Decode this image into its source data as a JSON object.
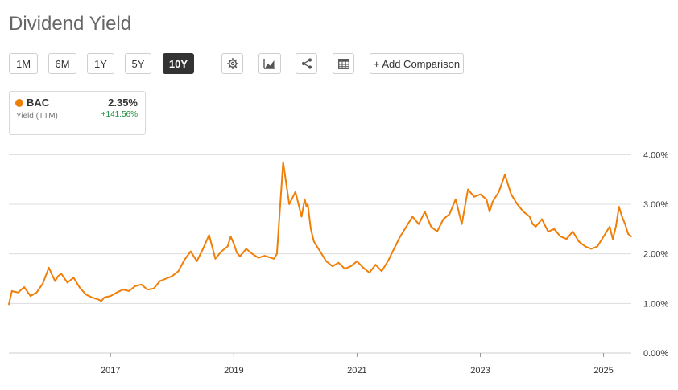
{
  "page": {
    "title": "Dividend Yield"
  },
  "toolbar": {
    "ranges": [
      "1M",
      "6M",
      "1Y",
      "5Y",
      "10Y"
    ],
    "active_range": "10Y",
    "add_comparison_label": "+ Add Comparison",
    "icons": [
      "gear-icon",
      "chart-type-icon",
      "share-icon",
      "table-icon"
    ]
  },
  "legend": {
    "ticker": "BAC",
    "value": "2.35%",
    "label": "Yield (TTM)",
    "change": "+141.56%",
    "color": "#f07f09",
    "change_color": "#1f8c3f"
  },
  "chart_data": {
    "type": "line",
    "title": "",
    "xlabel": "",
    "ylabel": "",
    "x_tick_labels": [
      "2017",
      "2019",
      "2021",
      "2023",
      "2025"
    ],
    "y_tick_labels": [
      "4.00%",
      "3.00%",
      "2.00%",
      "1.00%",
      "0.00%"
    ],
    "ylim": [
      0,
      4.2
    ],
    "xlim": [
      2015.35,
      2025.45
    ],
    "grid": true,
    "y_axis_side": "right",
    "series": [
      {
        "name": "BAC",
        "color": "#f07f09",
        "x": [
          2015.35,
          2015.4,
          2015.5,
          2015.6,
          2015.7,
          2015.8,
          2015.9,
          2016.0,
          2016.05,
          2016.1,
          2016.15,
          2016.2,
          2016.3,
          2016.4,
          2016.5,
          2016.6,
          2016.7,
          2016.8,
          2016.85,
          2016.9,
          2017.0,
          2017.1,
          2017.2,
          2017.3,
          2017.4,
          2017.5,
          2017.6,
          2017.7,
          2017.8,
          2017.9,
          2018.0,
          2018.1,
          2018.2,
          2018.3,
          2018.4,
          2018.5,
          2018.6,
          2018.7,
          2018.8,
          2018.9,
          2018.95,
          2019.0,
          2019.05,
          2019.1,
          2019.2,
          2019.3,
          2019.4,
          2019.5,
          2019.6,
          2019.65,
          2019.7,
          2019.8,
          2019.9,
          2020.0,
          2020.1,
          2020.15,
          2020.18,
          2020.2,
          2020.22,
          2020.25,
          2020.3,
          2020.4,
          2020.5,
          2020.6,
          2020.7,
          2020.8,
          2020.9,
          2021.0,
          2021.1,
          2021.2,
          2021.3,
          2021.4,
          2021.5,
          2021.6,
          2021.7,
          2021.8,
          2021.9,
          2022.0,
          2022.1,
          2022.2,
          2022.3,
          2022.4,
          2022.5,
          2022.6,
          2022.7,
          2022.8,
          2022.9,
          2023.0,
          2023.1,
          2023.15,
          2023.2,
          2023.3,
          2023.4,
          2023.5,
          2023.6,
          2023.7,
          2023.8,
          2023.85,
          2023.9,
          2024.0,
          2024.1,
          2024.2,
          2024.3,
          2024.4,
          2024.5,
          2024.6,
          2024.7,
          2024.8,
          2024.9,
          2025.0,
          2025.1,
          2025.15,
          2025.2,
          2025.25,
          2025.3,
          2025.35,
          2025.4,
          2025.45
        ],
        "y": [
          0.98,
          1.25,
          1.22,
          1.33,
          1.15,
          1.22,
          1.4,
          1.72,
          1.58,
          1.45,
          1.55,
          1.6,
          1.42,
          1.52,
          1.32,
          1.18,
          1.12,
          1.08,
          1.05,
          1.12,
          1.15,
          1.22,
          1.28,
          1.25,
          1.35,
          1.38,
          1.28,
          1.3,
          1.45,
          1.5,
          1.55,
          1.65,
          1.88,
          2.05,
          1.85,
          2.1,
          2.38,
          1.9,
          2.05,
          2.15,
          2.35,
          2.2,
          2.02,
          1.95,
          2.1,
          2.0,
          1.92,
          1.96,
          1.92,
          1.9,
          2.0,
          3.85,
          3.0,
          3.25,
          2.75,
          3.1,
          2.95,
          3.0,
          2.8,
          2.5,
          2.25,
          2.05,
          1.85,
          1.75,
          1.82,
          1.7,
          1.75,
          1.85,
          1.72,
          1.62,
          1.78,
          1.65,
          1.85,
          2.1,
          2.35,
          2.55,
          2.75,
          2.6,
          2.85,
          2.55,
          2.45,
          2.7,
          2.8,
          3.1,
          2.6,
          3.3,
          3.15,
          3.2,
          3.1,
          2.85,
          3.05,
          3.25,
          3.6,
          3.2,
          3.0,
          2.85,
          2.75,
          2.6,
          2.55,
          2.7,
          2.45,
          2.5,
          2.35,
          2.3,
          2.45,
          2.25,
          2.15,
          2.1,
          2.15,
          2.35,
          2.55,
          2.3,
          2.55,
          2.95,
          2.75,
          2.6,
          2.4,
          2.35
        ]
      }
    ]
  }
}
